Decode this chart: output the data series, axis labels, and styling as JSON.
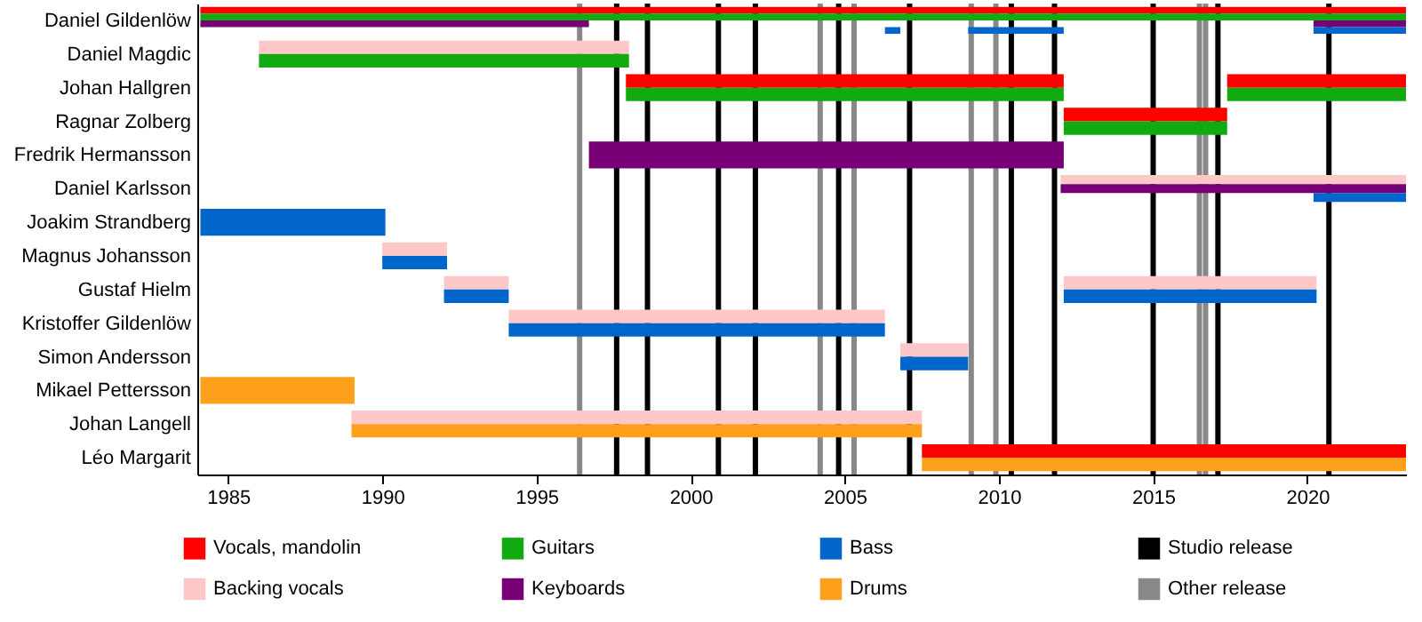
{
  "chart_data": {
    "type": "bar",
    "orientation": "horizontal",
    "legend": "bottom",
    "categories": [
      "Daniel Gildenlöw",
      "Daniel Magdic",
      "Johan Hallgren",
      "Ragnar Zolberg",
      "Fredrik Hermansson",
      "Daniel Karlsson",
      "Joakim Strandberg",
      "Magnus Johansson",
      "Gustaf Hielm",
      "Kristoffer Gildenlöw",
      "Simon Andersson",
      "Mikael Pettersson",
      "Johan Langell",
      "Léo Margarit"
    ],
    "xlim": [
      1984,
      2023.2
    ],
    "xticks": [
      1985,
      1990,
      1995,
      2000,
      2005,
      2010,
      2015,
      2020
    ],
    "series": [
      {
        "name": "Vocals, mandolin",
        "color": "#ff0000",
        "base": [
          1984.1,
          null,
          1997.9,
          2012.1,
          null,
          null,
          null,
          null,
          null,
          null,
          null,
          null,
          null,
          2007.5
        ],
        "values": [
          39.1,
          null,
          14.2,
          5.3,
          null,
          null,
          null,
          null,
          null,
          null,
          null,
          null,
          null,
          15.7
        ]
      },
      {
        "color": "#ff0000",
        "base": [
          null,
          null,
          2017.4,
          null,
          null,
          null,
          null,
          null,
          null,
          null,
          null,
          null,
          null,
          null
        ],
        "values": [
          null,
          null,
          5.8,
          null,
          null,
          null,
          null,
          null,
          null,
          null,
          null,
          null,
          null,
          null
        ]
      },
      {
        "name": "Backing vocals",
        "color": "#ffc8c8",
        "base": [
          null,
          1986.0,
          null,
          null,
          null,
          2012.0,
          null,
          1990.0,
          1992.0,
          1994.1,
          2006.8,
          null,
          1989.0,
          null
        ],
        "values": [
          null,
          12.0,
          null,
          null,
          null,
          11.2,
          null,
          2.1,
          2.1,
          12.2,
          2.2,
          null,
          18.5,
          null
        ]
      },
      {
        "color": "#ffc8c8",
        "base": [
          null,
          null,
          null,
          null,
          null,
          null,
          null,
          null,
          2012.1,
          null,
          null,
          null,
          null,
          null
        ],
        "values": [
          null,
          null,
          null,
          null,
          null,
          null,
          null,
          null,
          8.2,
          null,
          null,
          null,
          null,
          null
        ]
      },
      {
        "name": "Guitars",
        "color": "#11aa11",
        "base": [
          1984.1,
          1986.0,
          1997.9,
          2012.1,
          null,
          null,
          null,
          null,
          null,
          null,
          null,
          null,
          null,
          null
        ],
        "values": [
          39.1,
          12.0,
          14.2,
          5.3,
          null,
          null,
          null,
          null,
          null,
          null,
          null,
          null,
          null,
          null
        ]
      },
      {
        "color": "#11aa11",
        "base": [
          null,
          null,
          2017.4,
          null,
          null,
          null,
          null,
          null,
          null,
          null,
          null,
          null,
          null,
          null
        ],
        "values": [
          null,
          null,
          5.8,
          null,
          null,
          null,
          null,
          null,
          null,
          null,
          null,
          null,
          null,
          null
        ]
      },
      {
        "name": "Keyboards",
        "color": "#770077",
        "base": [
          1984.1,
          null,
          null,
          null,
          1996.7,
          2012.0,
          null,
          null,
          null,
          null,
          null,
          null,
          null,
          null
        ],
        "values": [
          12.6,
          null,
          null,
          null,
          15.4,
          11.2,
          null,
          null,
          null,
          null,
          null,
          null,
          null,
          null
        ]
      },
      {
        "color": "#770077",
        "base": [
          2020.2,
          null,
          null,
          null,
          null,
          null,
          null,
          null,
          null,
          null,
          null,
          null,
          null,
          null
        ],
        "values": [
          3.0,
          null,
          null,
          null,
          null,
          null,
          null,
          null,
          null,
          null,
          null,
          null,
          null,
          null
        ]
      },
      {
        "name": "Bass",
        "color": "#0066cc",
        "base": [
          2006.3,
          null,
          null,
          null,
          null,
          2020.2,
          1984.1,
          1990.0,
          1992.0,
          1994.1,
          2006.8,
          null,
          null,
          null
        ],
        "values": [
          0.5,
          null,
          null,
          null,
          null,
          3.0,
          6.0,
          2.1,
          2.1,
          12.2,
          2.2,
          null,
          null,
          null
        ]
      },
      {
        "color": "#0066cc",
        "base": [
          2009.0,
          null,
          null,
          null,
          null,
          null,
          null,
          null,
          2012.1,
          null,
          null,
          null,
          null,
          null
        ],
        "values": [
          3.1,
          null,
          null,
          null,
          null,
          null,
          null,
          null,
          8.2,
          null,
          null,
          null,
          null,
          null
        ]
      },
      {
        "color": "#0066cc",
        "base": [
          2020.2,
          null,
          null,
          null,
          null,
          null,
          null,
          null,
          null,
          null,
          null,
          null,
          null,
          null
        ],
        "values": [
          3.0,
          null,
          null,
          null,
          null,
          null,
          null,
          null,
          null,
          null,
          null,
          null,
          null,
          null
        ]
      },
      {
        "name": "Drums",
        "color": "#ffa01c",
        "base": [
          null,
          null,
          null,
          null,
          null,
          null,
          null,
          null,
          null,
          null,
          null,
          1984.1,
          1989.0,
          2007.5
        ],
        "values": [
          null,
          null,
          null,
          null,
          null,
          null,
          null,
          null,
          null,
          null,
          null,
          5.0,
          18.5,
          15.7
        ]
      }
    ],
    "ref_lines": [
      {
        "axis": "x",
        "value": 1997.6,
        "label": "Studio release",
        "color": "#000000"
      },
      {
        "axis": "x",
        "value": 1998.6,
        "color": "#000000"
      },
      {
        "axis": "x",
        "value": 2000.9,
        "color": "#000000"
      },
      {
        "axis": "x",
        "value": 2002.1,
        "color": "#000000"
      },
      {
        "axis": "x",
        "value": 2004.8,
        "color": "#000000"
      },
      {
        "axis": "x",
        "value": 2007.1,
        "color": "#000000"
      },
      {
        "axis": "x",
        "value": 2010.4,
        "color": "#000000"
      },
      {
        "axis": "x",
        "value": 2011.8,
        "color": "#000000"
      },
      {
        "axis": "x",
        "value": 2015.0,
        "color": "#000000"
      },
      {
        "axis": "x",
        "value": 2017.1,
        "color": "#000000"
      },
      {
        "axis": "x",
        "value": 2020.7,
        "color": "#000000"
      },
      {
        "axis": "x",
        "value": 1996.4,
        "label": "Other release",
        "color": "#888888"
      },
      {
        "axis": "x",
        "value": 2004.2,
        "color": "#888888"
      },
      {
        "axis": "x",
        "value": 2005.3,
        "color": "#888888"
      },
      {
        "axis": "x",
        "value": 2009.1,
        "color": "#888888"
      },
      {
        "axis": "x",
        "value": 2009.9,
        "color": "#888888"
      },
      {
        "axis": "x",
        "value": 2016.5,
        "color": "#888888"
      },
      {
        "axis": "x",
        "value": 2016.7,
        "color": "#888888"
      }
    ]
  }
}
